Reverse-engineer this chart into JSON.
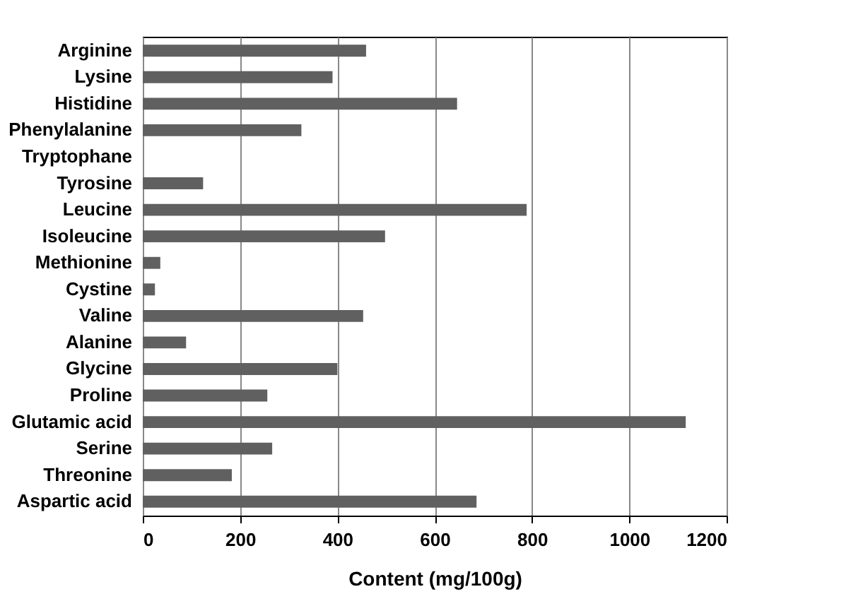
{
  "chart_data": {
    "type": "bar",
    "orientation": "horizontal",
    "xlabel": "Content (mg/100g)",
    "categories": [
      "Arginine",
      "Lysine",
      "Histidine",
      "Phenylalanine",
      "Tryptophane",
      "Tyrosine",
      "Leucine",
      "Isoleucine",
      "Methionine",
      "Cystine",
      "Valine",
      "Alanine",
      "Glycine",
      "Proline",
      "Glutamic acid",
      "Serine",
      "Threonine",
      "Aspartic acid"
    ],
    "values": [
      459,
      390,
      646,
      326,
      null,
      124,
      789,
      498,
      36,
      25,
      453,
      89,
      400,
      256,
      1116,
      266,
      183,
      686
    ],
    "color": "#606060",
    "xlim": [
      0,
      1200
    ],
    "xticks": [
      0,
      200,
      400,
      600,
      800,
      1000,
      1200
    ],
    "grid": "x"
  }
}
